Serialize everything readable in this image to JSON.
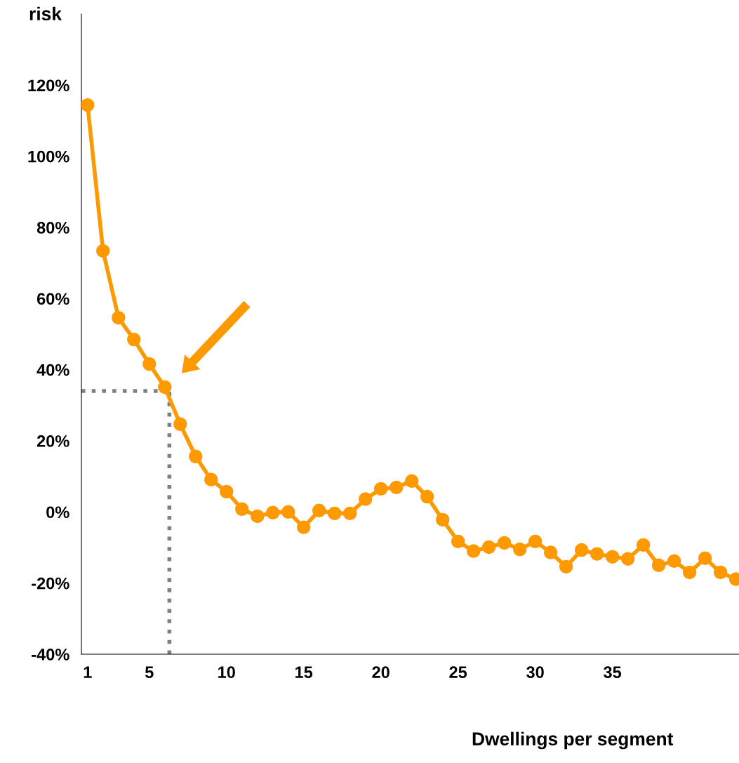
{
  "chart_data": {
    "type": "line",
    "ylabel": "risk",
    "xlabel": "Dwellings per segment",
    "x": [
      1,
      2,
      3,
      4,
      5,
      6,
      7,
      8,
      9,
      10,
      11,
      12,
      13,
      14,
      15,
      16,
      17,
      18,
      19,
      20,
      21,
      22,
      23,
      24,
      25,
      26,
      27,
      28,
      29,
      30,
      31,
      32,
      33,
      34,
      35,
      36,
      37,
      38,
      39,
      40,
      41,
      42,
      43
    ],
    "series": [
      {
        "color": "#ff9900",
        "values": [
          114.4,
          73.4,
          54.6,
          48.5,
          41.6,
          35.1,
          24.7,
          15.6,
          9.1,
          5.7,
          0.8,
          -1.2,
          -0.2,
          0,
          -4.3,
          0.4,
          -0.4,
          -0.4,
          3.6,
          6.5,
          6.9,
          8.7,
          4.3,
          -2.2,
          -8.3,
          -11.0,
          -9.9,
          -8.7,
          -10.5,
          -8.3,
          -11.4,
          -15.4,
          -10.7,
          -11.8,
          -12.6,
          -13.2,
          -9.3,
          -15.0,
          -13.8,
          -17.0,
          -13.0,
          -17.0,
          -18.9
        ]
      }
    ],
    "xlim": [
      0.6,
      43.2
    ],
    "xticks": [
      1,
      5,
      10,
      15,
      20,
      25,
      30,
      35
    ],
    "ylim": [
      -40,
      140
    ],
    "yticks": [
      {
        "value": -40,
        "label": "-40%"
      },
      {
        "value": -20,
        "label": "-20%"
      },
      {
        "value": 0,
        "label": "0%"
      },
      {
        "value": 20,
        "label": "20%"
      },
      {
        "value": 40,
        "label": "40%"
      },
      {
        "value": 60,
        "label": "60%"
      },
      {
        "value": 80,
        "label": "80%"
      },
      {
        "value": 100,
        "label": "100%"
      },
      {
        "value": 120,
        "label": "120%"
      }
    ],
    "ref_lines": [
      {
        "axis": "y",
        "value": 34,
        "color": "#808080",
        "line_style": "dotted"
      },
      {
        "axis": "x",
        "value": 6.3,
        "color": "#808080",
        "line_style": "dotted"
      }
    ],
    "marker": "circle",
    "line_style": "solid",
    "grid": false
  }
}
